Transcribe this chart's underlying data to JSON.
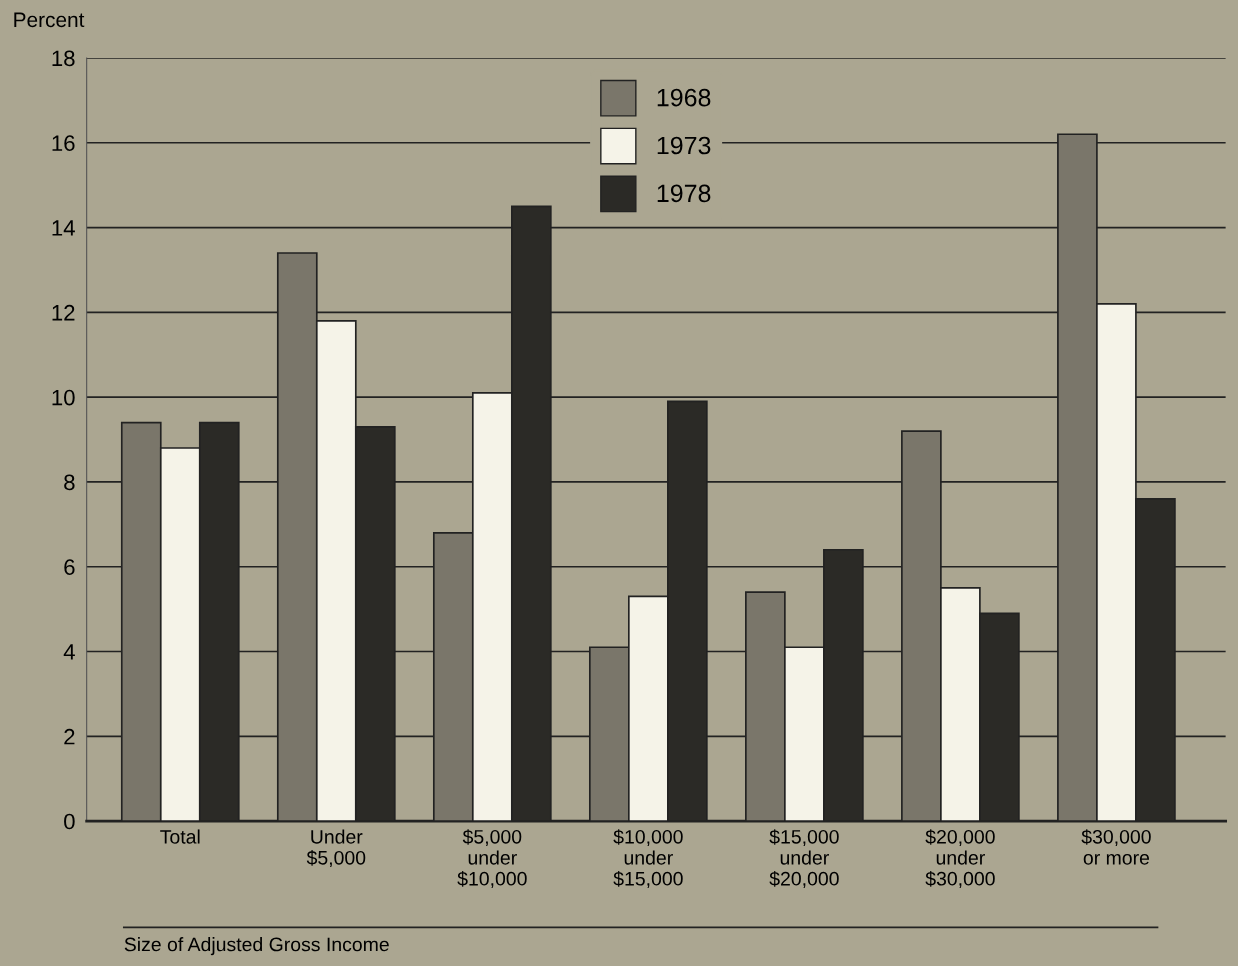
{
  "chart_data": {
    "type": "bar",
    "ylabel": "Percent",
    "xlabel": "Size of Adjusted Gross Income",
    "categories": [
      "Total",
      "Under\n$5,000",
      "$5,000\nunder\n$10,000",
      "$10,000\nunder\n$15,000",
      "$15,000\nunder\n$20,000",
      "$20,000\nunder\n$30,000",
      "$30,000\nor more"
    ],
    "series": [
      {
        "name": "1968",
        "color": "#7a766a",
        "values": [
          9.4,
          13.4,
          6.8,
          4.1,
          5.4,
          9.2,
          16.2
        ]
      },
      {
        "name": "1973",
        "color": "#f5f3e8",
        "values": [
          8.8,
          11.8,
          10.1,
          5.3,
          4.1,
          5.5,
          12.2
        ]
      },
      {
        "name": "1978",
        "color": "#2b2a26",
        "values": [
          9.4,
          9.3,
          14.5,
          9.9,
          6.4,
          4.9,
          7.6
        ]
      }
    ],
    "ylim": [
      0,
      18
    ],
    "yticks": [
      0,
      2,
      4,
      6,
      8,
      10,
      12,
      14,
      16,
      18
    ],
    "grid": "y",
    "legend": "top"
  }
}
